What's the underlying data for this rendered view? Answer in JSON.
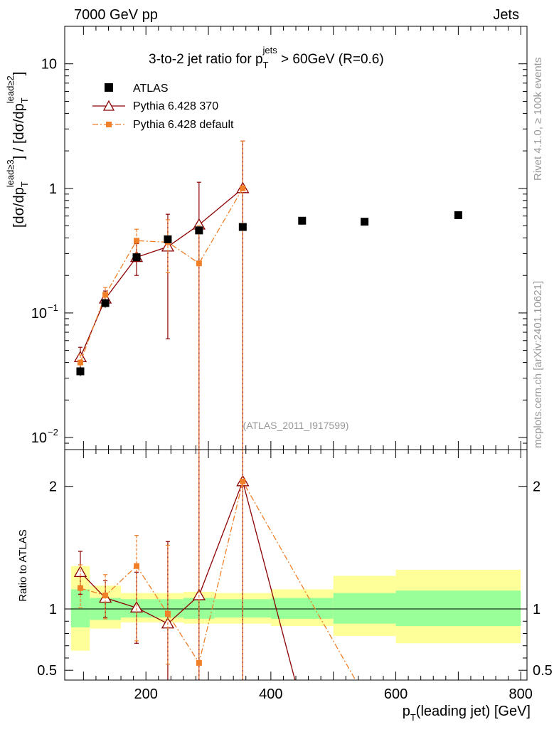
{
  "header": {
    "left": "7000 GeV pp",
    "right": "Jets"
  },
  "side": {
    "rivet": "Rivet 4.1.0, ≥ 100k events",
    "mcplots": "mcplots.cern.ch [arXiv:2401.10621]"
  },
  "chart_data": {
    "type": "scatter",
    "title_main": "3-to-2 jet ratio for p",
    "title_sub": "T",
    "title_sup": "jets",
    "title_tail": " > 60GeV (R=0.6)",
    "analysis_id": "(ATLAS_2011_I917599)",
    "y_axis": {
      "base": "[dσ/dp",
      "sub": "T",
      "sup1": "lead≥3",
      "mid": "] / [dσ/dp",
      "sup2": "lead≥2",
      "end": "]"
    },
    "ratio_ylabel": "Ratio to ATLAS",
    "x_axis": {
      "main": "p",
      "sub": "T",
      "tail": "(leading jet) [GeV]"
    },
    "xlim": [
      70,
      810
    ],
    "ylim_main": [
      0.008,
      20
    ],
    "ylim_ratio": [
      0.42,
      2.3
    ],
    "x_ticks": [
      "200",
      "400",
      "600",
      "800"
    ],
    "y_ticks_main": [
      {
        "value": 10,
        "mant": "10",
        "exp": ""
      },
      {
        "value": 1,
        "mant": "1",
        "exp": ""
      },
      {
        "value": 0.1,
        "mant": "10",
        "exp": "−1"
      },
      {
        "value": 0.01,
        "mant": "10",
        "exp": "−2"
      }
    ],
    "y_ticks_ratio": [
      "0.5",
      "1",
      "2"
    ],
    "bins": [
      {
        "lo": 80,
        "hi": 110
      },
      {
        "lo": 110,
        "hi": 160
      },
      {
        "lo": 160,
        "hi": 210
      },
      {
        "lo": 210,
        "hi": 260
      },
      {
        "lo": 260,
        "hi": 310
      },
      {
        "lo": 310,
        "hi": 400
      },
      {
        "lo": 400,
        "hi": 500
      },
      {
        "lo": 500,
        "hi": 600
      },
      {
        "lo": 600,
        "hi": 800
      }
    ],
    "band_green": [
      [
        0.85,
        1.16
      ],
      [
        0.91,
        1.09
      ],
      [
        0.93,
        1.08
      ],
      [
        0.93,
        1.08
      ],
      [
        0.92,
        1.09
      ],
      [
        0.93,
        1.08
      ],
      [
        0.92,
        1.09
      ],
      [
        0.88,
        1.13
      ],
      [
        0.86,
        1.15
      ]
    ],
    "band_yellow": [
      [
        0.66,
        1.35
      ],
      [
        0.84,
        1.19
      ],
      [
        0.89,
        1.13
      ],
      [
        0.89,
        1.13
      ],
      [
        0.88,
        1.14
      ],
      [
        0.88,
        1.13
      ],
      [
        0.86,
        1.16
      ],
      [
        0.78,
        1.27
      ],
      [
        0.72,
        1.32
      ]
    ],
    "series": [
      {
        "name": "ATLAS",
        "color": "#000000",
        "x": [
          95,
          135,
          185,
          235,
          285,
          355,
          450,
          550,
          700
        ],
        "y": [
          0.034,
          0.12,
          0.28,
          0.39,
          0.46,
          0.49,
          0.55,
          0.54,
          0.61
        ],
        "err_lo": [
          0.031,
          0.11,
          0.265,
          0.37,
          0.43,
          0.46,
          0.52,
          0.51,
          0.58
        ],
        "err_hi": [
          0.037,
          0.13,
          0.295,
          0.41,
          0.49,
          0.52,
          0.58,
          0.57,
          0.64
        ]
      },
      {
        "name": "Pythia 6.428 370",
        "color": "#8b0000",
        "x": [
          95,
          135,
          185,
          235,
          285,
          355
        ],
        "y": [
          0.044,
          0.13,
          0.28,
          0.34,
          0.51,
          1.0
        ],
        "err_lo": [
          0.036,
          0.115,
          0.2,
          0.062,
          0.005,
          0.005
        ],
        "err_hi": [
          0.053,
          0.15,
          0.36,
          0.62,
          1.12,
          2.4
        ],
        "ratio": [
          1.3,
          1.09,
          1.01,
          0.88,
          1.11,
          2.04
        ],
        "ratio_lo": [
          1.12,
          0.93,
          0.72,
          0.4,
          0.4,
          0.4
        ],
        "ratio_hi": [
          1.47,
          1.23,
          1.3,
          1.55,
          2.3,
          2.3
        ],
        "ratio_tail": {
          "x": 450,
          "y": 0.2
        }
      },
      {
        "name": "Pythia 6.428 default",
        "color": "#f07f28",
        "x": [
          95,
          135,
          185,
          235,
          285,
          355
        ],
        "y": [
          0.04,
          0.14,
          0.38,
          0.37,
          0.25,
          1.0
        ],
        "err_lo": [
          0.034,
          0.12,
          0.3,
          0.21,
          0.005,
          0.005
        ],
        "err_hi": [
          0.046,
          0.16,
          0.47,
          0.56,
          0.5,
          2.4
        ],
        "ratio": [
          1.17,
          1.11,
          1.35,
          0.96,
          0.56,
          2.04
        ],
        "ratio_lo": [
          1.01,
          0.92,
          0.74,
          0.55,
          0.4,
          0.4
        ],
        "ratio_hi": [
          1.36,
          1.28,
          1.6,
          1.52,
          2.3,
          2.3
        ],
        "ratio_tail": {
          "x": 560,
          "y": 0.2
        }
      }
    ]
  }
}
